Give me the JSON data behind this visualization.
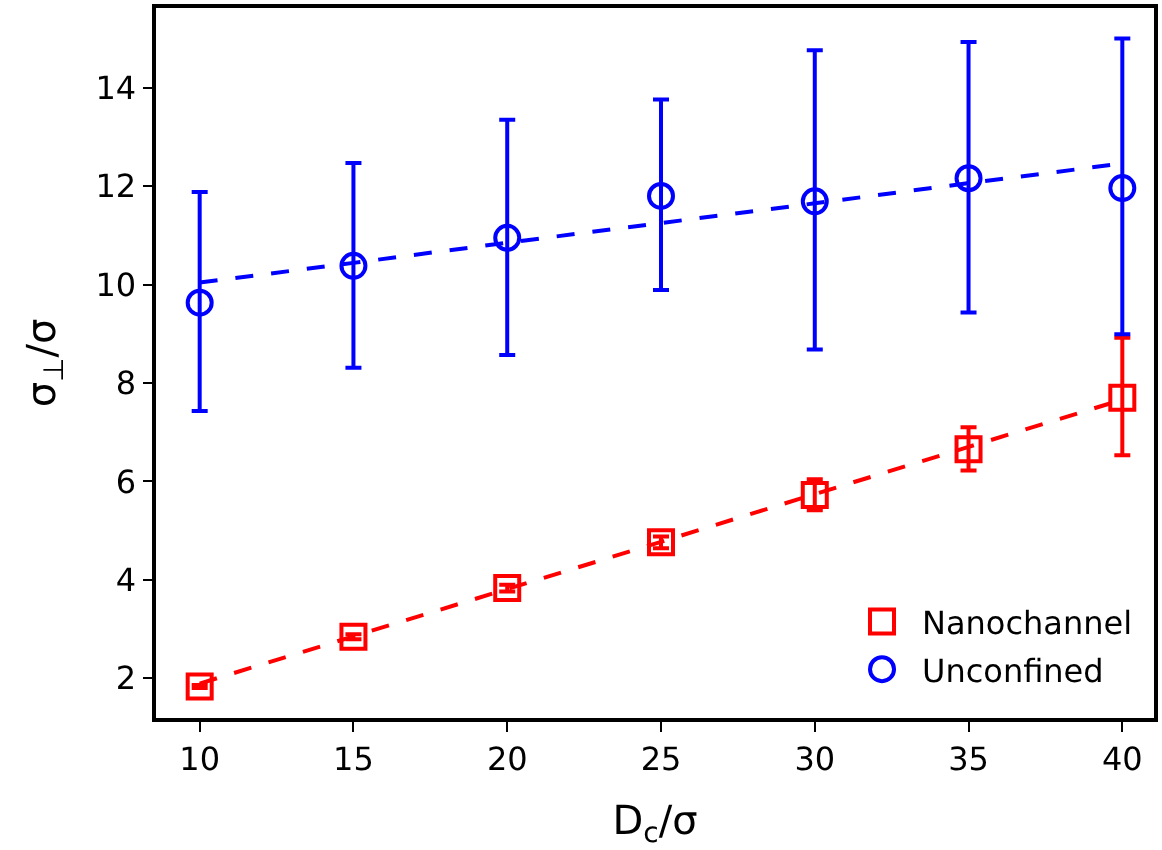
{
  "chart_data": {
    "type": "scatter",
    "xlabel": "D$_{c}$/σ",
    "ylabel": "σ$_{⊥}$/σ",
    "x": [
      10,
      15,
      20,
      25,
      30,
      35,
      40
    ],
    "series": [
      {
        "name": "Nanochannel",
        "color": "#ff0000",
        "marker": "square",
        "values": [
          1.83,
          2.84,
          3.83,
          4.76,
          5.72,
          6.65,
          7.7
        ],
        "errors": [
          [
            1.8,
            1.86
          ],
          [
            2.79,
            2.89
          ],
          [
            3.76,
            3.9
          ],
          [
            4.64,
            4.88
          ],
          [
            5.41,
            6.04
          ],
          [
            6.22,
            7.1
          ],
          [
            6.53,
            8.92
          ]
        ]
      },
      {
        "name": "Unconfined",
        "color": "#0000ff",
        "marker": "circle",
        "values": [
          9.63,
          10.38,
          10.95,
          11.8,
          11.69,
          12.16,
          11.96
        ],
        "errors": [
          [
            7.43,
            11.88
          ],
          [
            8.31,
            12.47
          ],
          [
            8.57,
            13.35
          ],
          [
            9.89,
            13.76
          ],
          [
            8.68,
            14.76
          ],
          [
            9.43,
            14.93
          ],
          [
            8.99,
            15.0
          ]
        ]
      },
      {
        "type": "line",
        "color": "#ff0000",
        "line_style": "dashed",
        "values": [
          1.89,
          2.85,
          3.81,
          4.77,
          5.74,
          6.7,
          7.66
        ]
      },
      {
        "type": "line",
        "color": "#0000ff",
        "line_style": "dashed",
        "values": [
          10.04,
          10.44,
          10.85,
          11.25,
          11.65,
          12.06,
          12.46
        ]
      }
    ],
    "xlim": [
      8.58,
      41.03
    ],
    "ylim": [
      1.19,
      15.62
    ],
    "xticks": [
      10,
      15,
      20,
      25,
      30,
      35,
      40
    ],
    "yticks": [
      2,
      4,
      6,
      8,
      10,
      12,
      14
    ],
    "legend": "bottom right"
  }
}
